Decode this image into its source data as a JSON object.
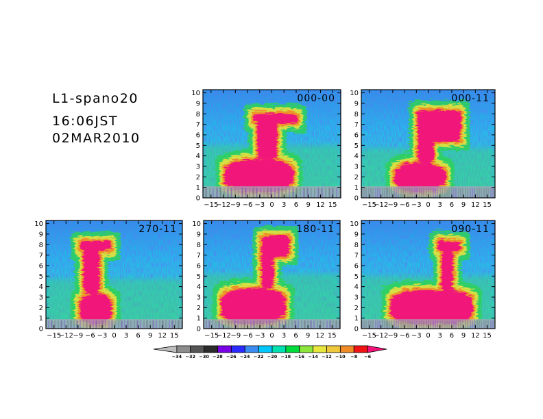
{
  "header": {
    "title": "L1-spano20",
    "time": "16:06JST",
    "date": "02MAR2010"
  },
  "chart_data": [
    {
      "type": "heatmap",
      "label": "000-00",
      "x_ticks": [
        "-15",
        "-12",
        "-9",
        "-6",
        "-3",
        "0",
        "3",
        "6",
        "9",
        "12",
        "15"
      ],
      "y_ticks": [
        "0",
        "1",
        "2",
        "3",
        "4",
        "5",
        "6",
        "7",
        "8",
        "9",
        "10"
      ],
      "xlim": [
        -17,
        17
      ],
      "ylim": [
        0,
        10.3
      ],
      "ground_level": 1.1,
      "base": {
        "x": [
          -12,
          5
        ],
        "y": [
          0.7,
          3.8
        ]
      },
      "stem": {
        "x": [
          -4,
          1
        ],
        "y": [
          3.8,
          7.5
        ]
      },
      "cap": {
        "x": [
          -5,
          6
        ],
        "y": [
          7.2,
          8.2
        ]
      }
    },
    {
      "type": "heatmap",
      "label": "000-11",
      "x_ticks": [
        "-15",
        "-12",
        "-9",
        "-6",
        "-3",
        "0",
        "3",
        "6",
        "9",
        "12",
        "15"
      ],
      "y_ticks": [
        "0",
        "1",
        "2",
        "3",
        "4",
        "5",
        "6",
        "7",
        "8",
        "9",
        "10"
      ],
      "xlim": [
        -17,
        17
      ],
      "ylim": [
        0,
        10.3
      ],
      "ground_level": 1.1,
      "base": {
        "x": [
          -9,
          4
        ],
        "y": [
          0.7,
          3.5
        ]
      },
      "stem": {
        "x": [
          -3,
          1
        ],
        "y": [
          3.5,
          7.8
        ]
      },
      "cap": {
        "x": [
          -3,
          8
        ],
        "y": [
          5.5,
          8.5
        ]
      }
    },
    {
      "type": "heatmap",
      "label": "270-11",
      "x_ticks": [
        "-15",
        "-12",
        "-9",
        "-6",
        "-3",
        "0",
        "3",
        "6",
        "9",
        "12",
        "15"
      ],
      "y_ticks": [
        "0",
        "1",
        "2",
        "3",
        "4",
        "5",
        "6",
        "7",
        "8",
        "9",
        "10"
      ],
      "xlim": [
        -17,
        17
      ],
      "ylim": [
        0,
        10.3
      ],
      "ground_level": 0.9,
      "base": {
        "x": [
          -9,
          -1
        ],
        "y": [
          0.5,
          3.5
        ]
      },
      "stem": {
        "x": [
          -8,
          -4
        ],
        "y": [
          3.5,
          8.0
        ]
      },
      "cap": {
        "x": [
          -9,
          -1
        ],
        "y": [
          7.5,
          8.5
        ]
      }
    },
    {
      "type": "heatmap",
      "label": "180-11",
      "x_ticks": [
        "-15",
        "-12",
        "-9",
        "-6",
        "-3",
        "0",
        "3",
        "6",
        "9",
        "12",
        "15"
      ],
      "y_ticks": [
        "0",
        "1",
        "2",
        "3",
        "4",
        "5",
        "6",
        "7",
        "8",
        "9",
        "10"
      ],
      "xlim": [
        -17,
        17
      ],
      "ylim": [
        0,
        10.3
      ],
      "ground_level": 0.9,
      "base": {
        "x": [
          -13,
          3
        ],
        "y": [
          0.6,
          4.0
        ]
      },
      "stem": {
        "x": [
          -3,
          0
        ],
        "y": [
          4.0,
          7.5
        ]
      },
      "cap": {
        "x": [
          -3,
          4
        ],
        "y": [
          7.0,
          9.0
        ]
      }
    },
    {
      "type": "heatmap",
      "label": "090-11",
      "x_ticks": [
        "-15",
        "-12",
        "-9",
        "-6",
        "-3",
        "0",
        "3",
        "6",
        "9",
        "12",
        "15"
      ],
      "y_ticks": [
        "0",
        "1",
        "2",
        "3",
        "4",
        "5",
        "6",
        "7",
        "8",
        "9",
        "10"
      ],
      "xlim": [
        -17,
        17
      ],
      "ylim": [
        0,
        10.3
      ],
      "ground_level": 0.9,
      "base": {
        "x": [
          -10,
          11
        ],
        "y": [
          0.6,
          3.8
        ]
      },
      "stem": {
        "x": [
          3,
          6
        ],
        "y": [
          3.8,
          7.5
        ]
      },
      "cap": {
        "x": [
          2,
          8
        ],
        "y": [
          7.5,
          8.5
        ]
      }
    }
  ],
  "colorbar": {
    "labels": [
      "-34",
      "-32",
      "-30",
      "-28",
      "-26",
      "-24",
      "-22",
      "-20",
      "-18",
      "-16",
      "-14",
      "-12",
      "-10",
      "-8",
      "-6"
    ],
    "colors": [
      "#bdbdbd",
      "#8c8c8c",
      "#555555",
      "#2b2b2b",
      "#7a00e6",
      "#2a2aff",
      "#3b8cf0",
      "#00c8ff",
      "#00e0b0",
      "#00dc3c",
      "#8ce63c",
      "#e6e63c",
      "#f0c83c",
      "#f08c28",
      "#f01414",
      "#f0147a"
    ]
  }
}
